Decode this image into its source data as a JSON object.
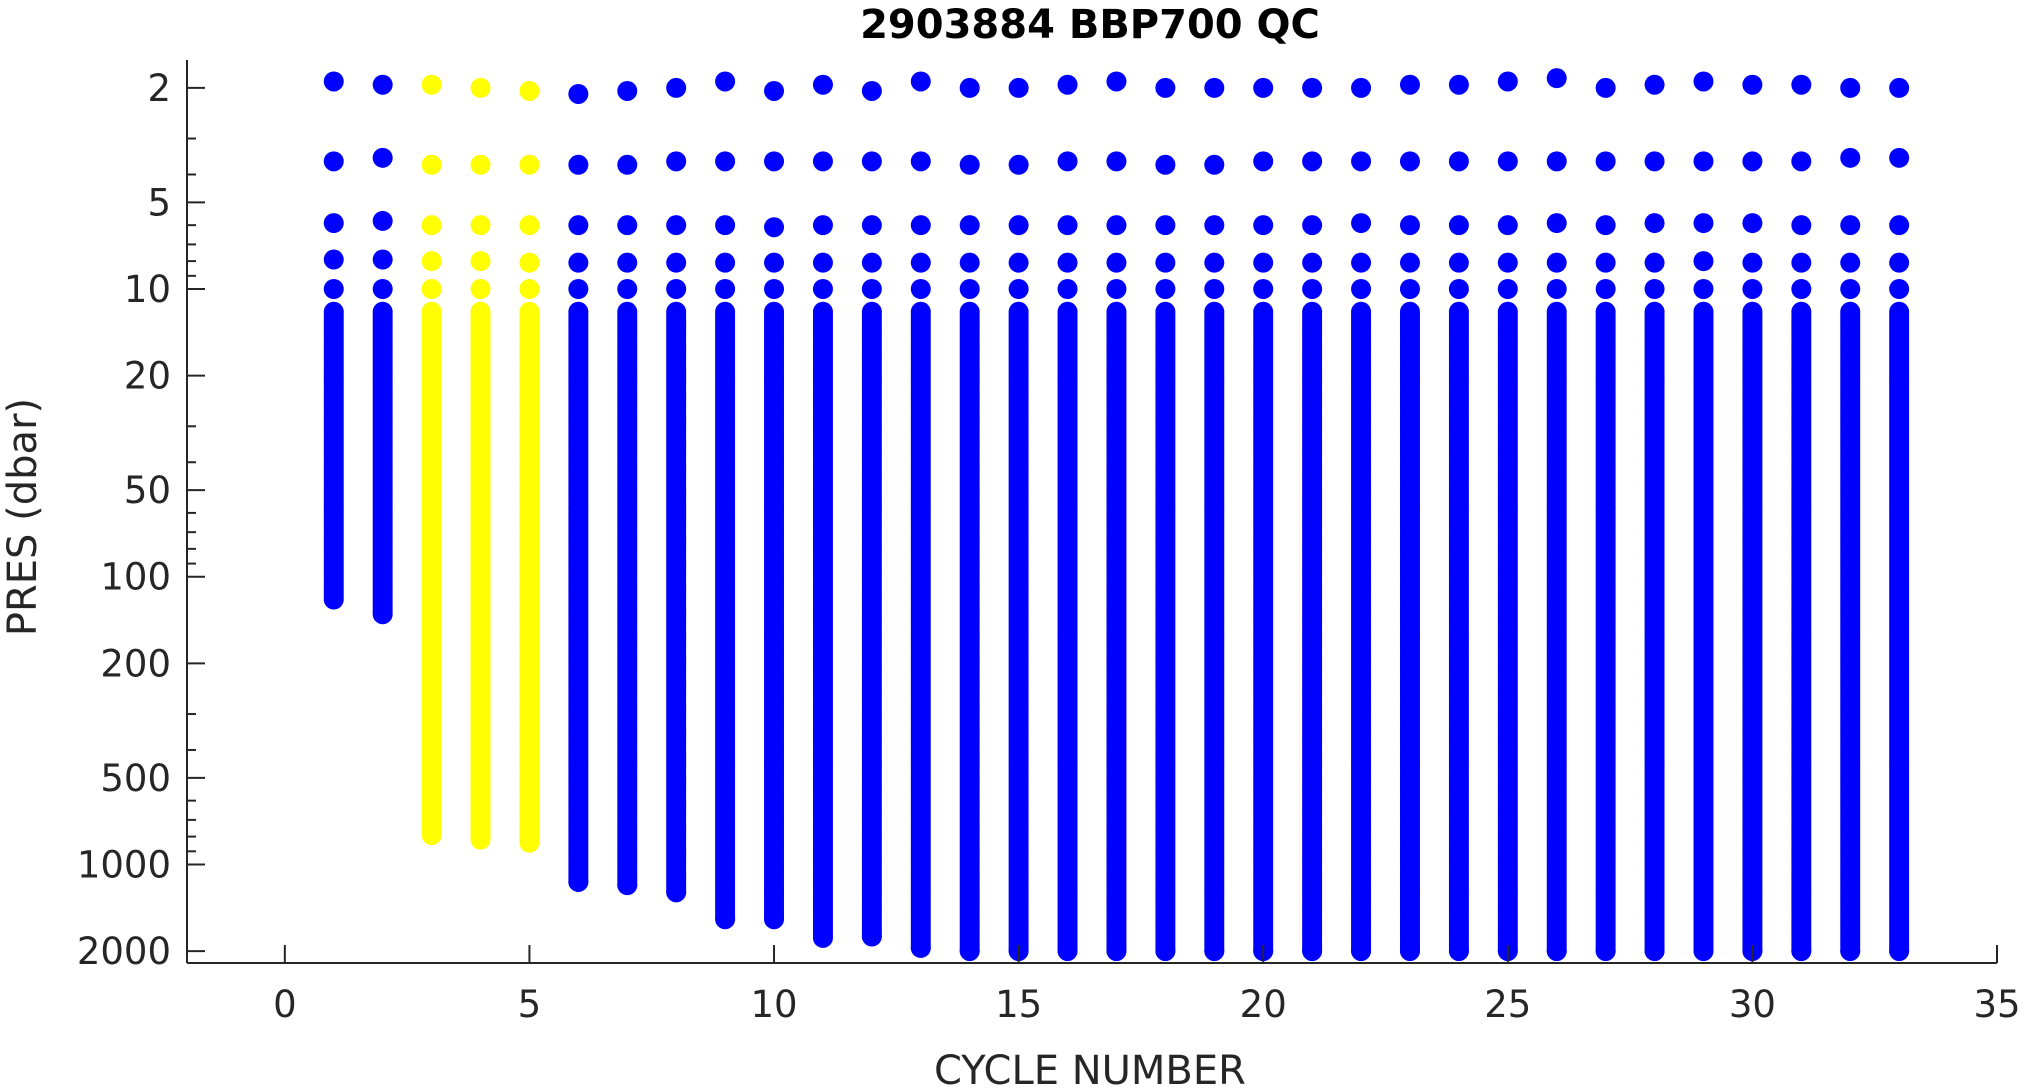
{
  "chart_data": {
    "type": "scatter",
    "title": "2903884 BBP700 QC",
    "xlabel": "CYCLE NUMBER",
    "ylabel": "PRES (dbar)",
    "xlim": [
      -2,
      35
    ],
    "ylim": [
      1.6,
      2200
    ],
    "y_scale": "log",
    "y_reversed": true,
    "grid": false,
    "legend": "none",
    "x_ticks": [
      0,
      5,
      10,
      15,
      20,
      25,
      30,
      35
    ],
    "x_tick_labels": [
      "0",
      "5",
      "10",
      "15",
      "20",
      "25",
      "30",
      "35"
    ],
    "y_ticks": [
      2,
      5,
      10,
      20,
      50,
      100,
      200,
      500,
      1000,
      2000
    ],
    "y_tick_labels": [
      "2",
      "5",
      "10",
      "20",
      "50",
      "100",
      "200",
      "500",
      "1000",
      "2000"
    ],
    "colors": {
      "qc1": "#0000ff",
      "qc3": "#ffff00"
    },
    "profiles": [
      {
        "cycle": 1,
        "shallow": [
          1.9,
          3.6,
          5.9,
          7.9,
          10
        ],
        "deep_start": 12,
        "max_pres": 120,
        "qc": 1
      },
      {
        "cycle": 2,
        "shallow": [
          1.95,
          3.5,
          5.8,
          7.9,
          10
        ],
        "deep_start": 12,
        "max_pres": 135,
        "qc": 1
      },
      {
        "cycle": 3,
        "shallow": [
          1.95,
          3.7,
          6.0,
          8.0,
          10
        ],
        "deep_start": 12,
        "max_pres": 790,
        "qc": 3
      },
      {
        "cycle": 4,
        "shallow": [
          2.0,
          3.7,
          6.0,
          8.0,
          10
        ],
        "deep_start": 12,
        "max_pres": 820,
        "qc": 3
      },
      {
        "cycle": 5,
        "shallow": [
          2.05,
          3.7,
          6.0,
          8.1,
          10
        ],
        "deep_start": 12,
        "max_pres": 840,
        "qc": 3
      },
      {
        "cycle": 6,
        "shallow": [
          2.1,
          3.7,
          6.0,
          8.1,
          10
        ],
        "deep_start": 12,
        "max_pres": 1150,
        "qc": 1
      },
      {
        "cycle": 7,
        "shallow": [
          2.05,
          3.7,
          6.0,
          8.1,
          10
        ],
        "deep_start": 12,
        "max_pres": 1180,
        "qc": 1
      },
      {
        "cycle": 8,
        "shallow": [
          2.0,
          3.6,
          6.0,
          8.1,
          10
        ],
        "deep_start": 12,
        "max_pres": 1250,
        "qc": 1
      },
      {
        "cycle": 9,
        "shallow": [
          1.9,
          3.6,
          6.0,
          8.1,
          10
        ],
        "deep_start": 12,
        "max_pres": 1550,
        "qc": 1
      },
      {
        "cycle": 10,
        "shallow": [
          2.05,
          3.6,
          6.1,
          8.1,
          10
        ],
        "deep_start": 12,
        "max_pres": 1550,
        "qc": 1
      },
      {
        "cycle": 11,
        "shallow": [
          1.95,
          3.6,
          6.0,
          8.1,
          10
        ],
        "deep_start": 12,
        "max_pres": 1800,
        "qc": 1
      },
      {
        "cycle": 12,
        "shallow": [
          2.05,
          3.6,
          6.0,
          8.1,
          10
        ],
        "deep_start": 12,
        "max_pres": 1780,
        "qc": 1
      },
      {
        "cycle": 13,
        "shallow": [
          1.9,
          3.6,
          6.0,
          8.1,
          10
        ],
        "deep_start": 12,
        "max_pres": 1950,
        "qc": 1
      },
      {
        "cycle": 14,
        "shallow": [
          2.0,
          3.7,
          6.0,
          8.1,
          10
        ],
        "deep_start": 12,
        "max_pres": 2000,
        "qc": 1
      },
      {
        "cycle": 15,
        "shallow": [
          2.0,
          3.7,
          6.0,
          8.1,
          10
        ],
        "deep_start": 12,
        "max_pres": 2000,
        "qc": 1
      },
      {
        "cycle": 16,
        "shallow": [
          1.95,
          3.6,
          6.0,
          8.1,
          10
        ],
        "deep_start": 12,
        "max_pres": 2000,
        "qc": 1
      },
      {
        "cycle": 17,
        "shallow": [
          1.9,
          3.6,
          6.0,
          8.1,
          10
        ],
        "deep_start": 12,
        "max_pres": 2000,
        "qc": 1
      },
      {
        "cycle": 18,
        "shallow": [
          2.0,
          3.7,
          6.0,
          8.1,
          10
        ],
        "deep_start": 12,
        "max_pres": 2000,
        "qc": 1
      },
      {
        "cycle": 19,
        "shallow": [
          2.0,
          3.7,
          6.0,
          8.1,
          10
        ],
        "deep_start": 12,
        "max_pres": 2000,
        "qc": 1
      },
      {
        "cycle": 20,
        "shallow": [
          2.0,
          3.6,
          6.0,
          8.1,
          10
        ],
        "deep_start": 12,
        "max_pres": 2000,
        "qc": 1
      },
      {
        "cycle": 21,
        "shallow": [
          2.0,
          3.6,
          6.0,
          8.1,
          10
        ],
        "deep_start": 12,
        "max_pres": 2000,
        "qc": 1
      },
      {
        "cycle": 22,
        "shallow": [
          2.0,
          3.6,
          5.9,
          8.1,
          10
        ],
        "deep_start": 12,
        "max_pres": 2000,
        "qc": 1
      },
      {
        "cycle": 23,
        "shallow": [
          1.95,
          3.6,
          6.0,
          8.1,
          10
        ],
        "deep_start": 12,
        "max_pres": 2000,
        "qc": 1
      },
      {
        "cycle": 24,
        "shallow": [
          1.95,
          3.6,
          6.0,
          8.1,
          10
        ],
        "deep_start": 12,
        "max_pres": 2000,
        "qc": 1
      },
      {
        "cycle": 25,
        "shallow": [
          1.9,
          3.6,
          6.0,
          8.1,
          10
        ],
        "deep_start": 12,
        "max_pres": 2000,
        "qc": 1
      },
      {
        "cycle": 26,
        "shallow": [
          1.85,
          3.6,
          5.9,
          8.1,
          10
        ],
        "deep_start": 12,
        "max_pres": 2000,
        "qc": 1
      },
      {
        "cycle": 27,
        "shallow": [
          2.0,
          3.6,
          6.0,
          8.1,
          10
        ],
        "deep_start": 12,
        "max_pres": 2000,
        "qc": 1
      },
      {
        "cycle": 28,
        "shallow": [
          1.95,
          3.6,
          5.9,
          8.1,
          10
        ],
        "deep_start": 12,
        "max_pres": 2000,
        "qc": 1
      },
      {
        "cycle": 29,
        "shallow": [
          1.9,
          3.6,
          5.9,
          8.0,
          10
        ],
        "deep_start": 12,
        "max_pres": 2000,
        "qc": 1
      },
      {
        "cycle": 30,
        "shallow": [
          1.95,
          3.6,
          5.9,
          8.1,
          10
        ],
        "deep_start": 12,
        "max_pres": 2000,
        "qc": 1
      },
      {
        "cycle": 31,
        "shallow": [
          1.95,
          3.6,
          6.0,
          8.1,
          10
        ],
        "deep_start": 12,
        "max_pres": 2000,
        "qc": 1
      },
      {
        "cycle": 32,
        "shallow": [
          2.0,
          3.5,
          6.0,
          8.1,
          10
        ],
        "deep_start": 12,
        "max_pres": 2000,
        "qc": 1
      },
      {
        "cycle": 33,
        "shallow": [
          2.0,
          3.5,
          6.0,
          8.1,
          10
        ],
        "deep_start": 12,
        "max_pres": 2000,
        "qc": 1
      }
    ]
  }
}
